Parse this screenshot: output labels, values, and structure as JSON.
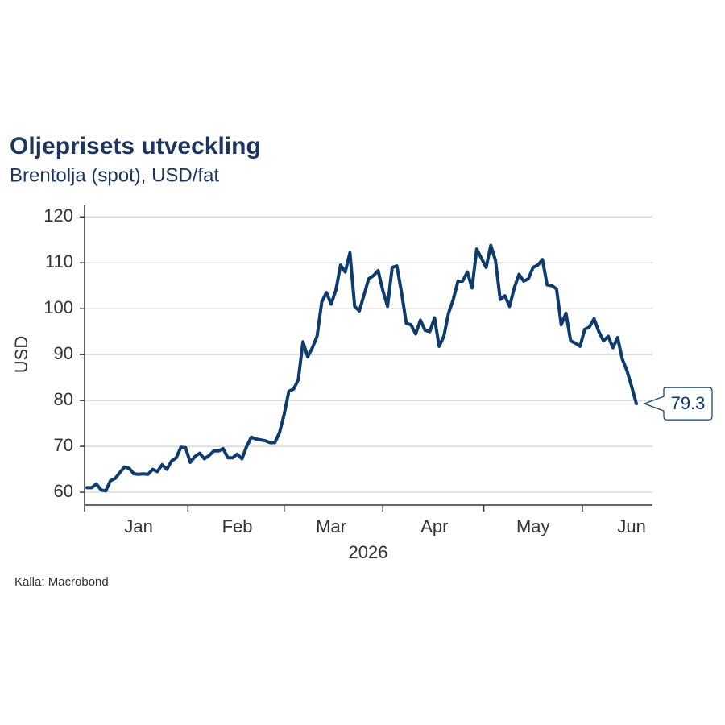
{
  "chart_data": {
    "type": "line",
    "title": "Oljeprisets utveckling",
    "subtitle": "Brentolja (spot), USD/fat",
    "y_label": "USD",
    "x_label": "2026",
    "source": "Källa: Macrobond",
    "categories": [
      null,
      null,
      null,
      null,
      null,
      null,
      null,
      null,
      null,
      null,
      null,
      "Jan",
      null,
      null,
      null,
      null,
      null,
      null,
      null,
      null,
      null,
      null,
      null,
      null,
      null,
      null,
      null,
      null,
      null,
      null,
      null,
      null,
      "Feb",
      null,
      null,
      null,
      null,
      null,
      null,
      null,
      null,
      null,
      null,
      null,
      null,
      null,
      null,
      null,
      null,
      null,
      null,
      null,
      "Mar",
      null,
      null,
      null,
      null,
      null,
      null,
      null,
      null,
      null,
      null,
      null,
      null,
      null,
      null,
      null,
      null,
      null,
      null,
      null,
      null,
      null,
      "Apr",
      null,
      null,
      null,
      null,
      null,
      null,
      null,
      null,
      null,
      null,
      null,
      null,
      null,
      null,
      null,
      null,
      null,
      null,
      null,
      null,
      "May",
      null,
      null,
      null,
      null,
      null,
      null,
      null,
      null,
      null,
      null,
      null,
      null,
      null,
      null,
      null,
      null,
      null,
      null,
      null,
      null,
      "Jun",
      null
    ],
    "series": [
      {
        "name": "Brentolja",
        "color": "#0d3b6e",
        "values": [
          61,
          61,
          61.8,
          60.5,
          60.3,
          62.5,
          63,
          64.3,
          65.5,
          65.2,
          64,
          63.9,
          64,
          63.9,
          65,
          64.5,
          66,
          65,
          66.8,
          67.5,
          69.8,
          69.7,
          66.5,
          67.8,
          68.5,
          67.3,
          68,
          69,
          69,
          69.5,
          67.5,
          67.5,
          68.3,
          67.3,
          70,
          72,
          71.6,
          71.4,
          71.2,
          70.8,
          70.8,
          73,
          77,
          82,
          82.5,
          84.5,
          92.8,
          89.5,
          91.5,
          94,
          101.5,
          103.5,
          101,
          104,
          109.5,
          108,
          112.2,
          100.5,
          99.5,
          103,
          106.5,
          107.2,
          108.3,
          104,
          100.5,
          109,
          109.3,
          103.5,
          96.8,
          96.5,
          94.5,
          97.5,
          95.3,
          95,
          98,
          91.8,
          94,
          99,
          102,
          106,
          106,
          108,
          104.5,
          113,
          111,
          109,
          113.8,
          110.5,
          102,
          102.8,
          100.5,
          104.5,
          107.5,
          106,
          106.5,
          109,
          109.5,
          110.7,
          105.2,
          105,
          104.3,
          96.5,
          99,
          93,
          92.5,
          91.8,
          95.5,
          96,
          97.8,
          95,
          93,
          94,
          91.5,
          93.7,
          89,
          86.5,
          83,
          79.3
        ]
      }
    ],
    "ylim": [
      57.2,
      122.5
    ],
    "yticks": [
      60,
      70,
      80,
      90,
      100,
      110,
      120
    ],
    "grid": true
  }
}
